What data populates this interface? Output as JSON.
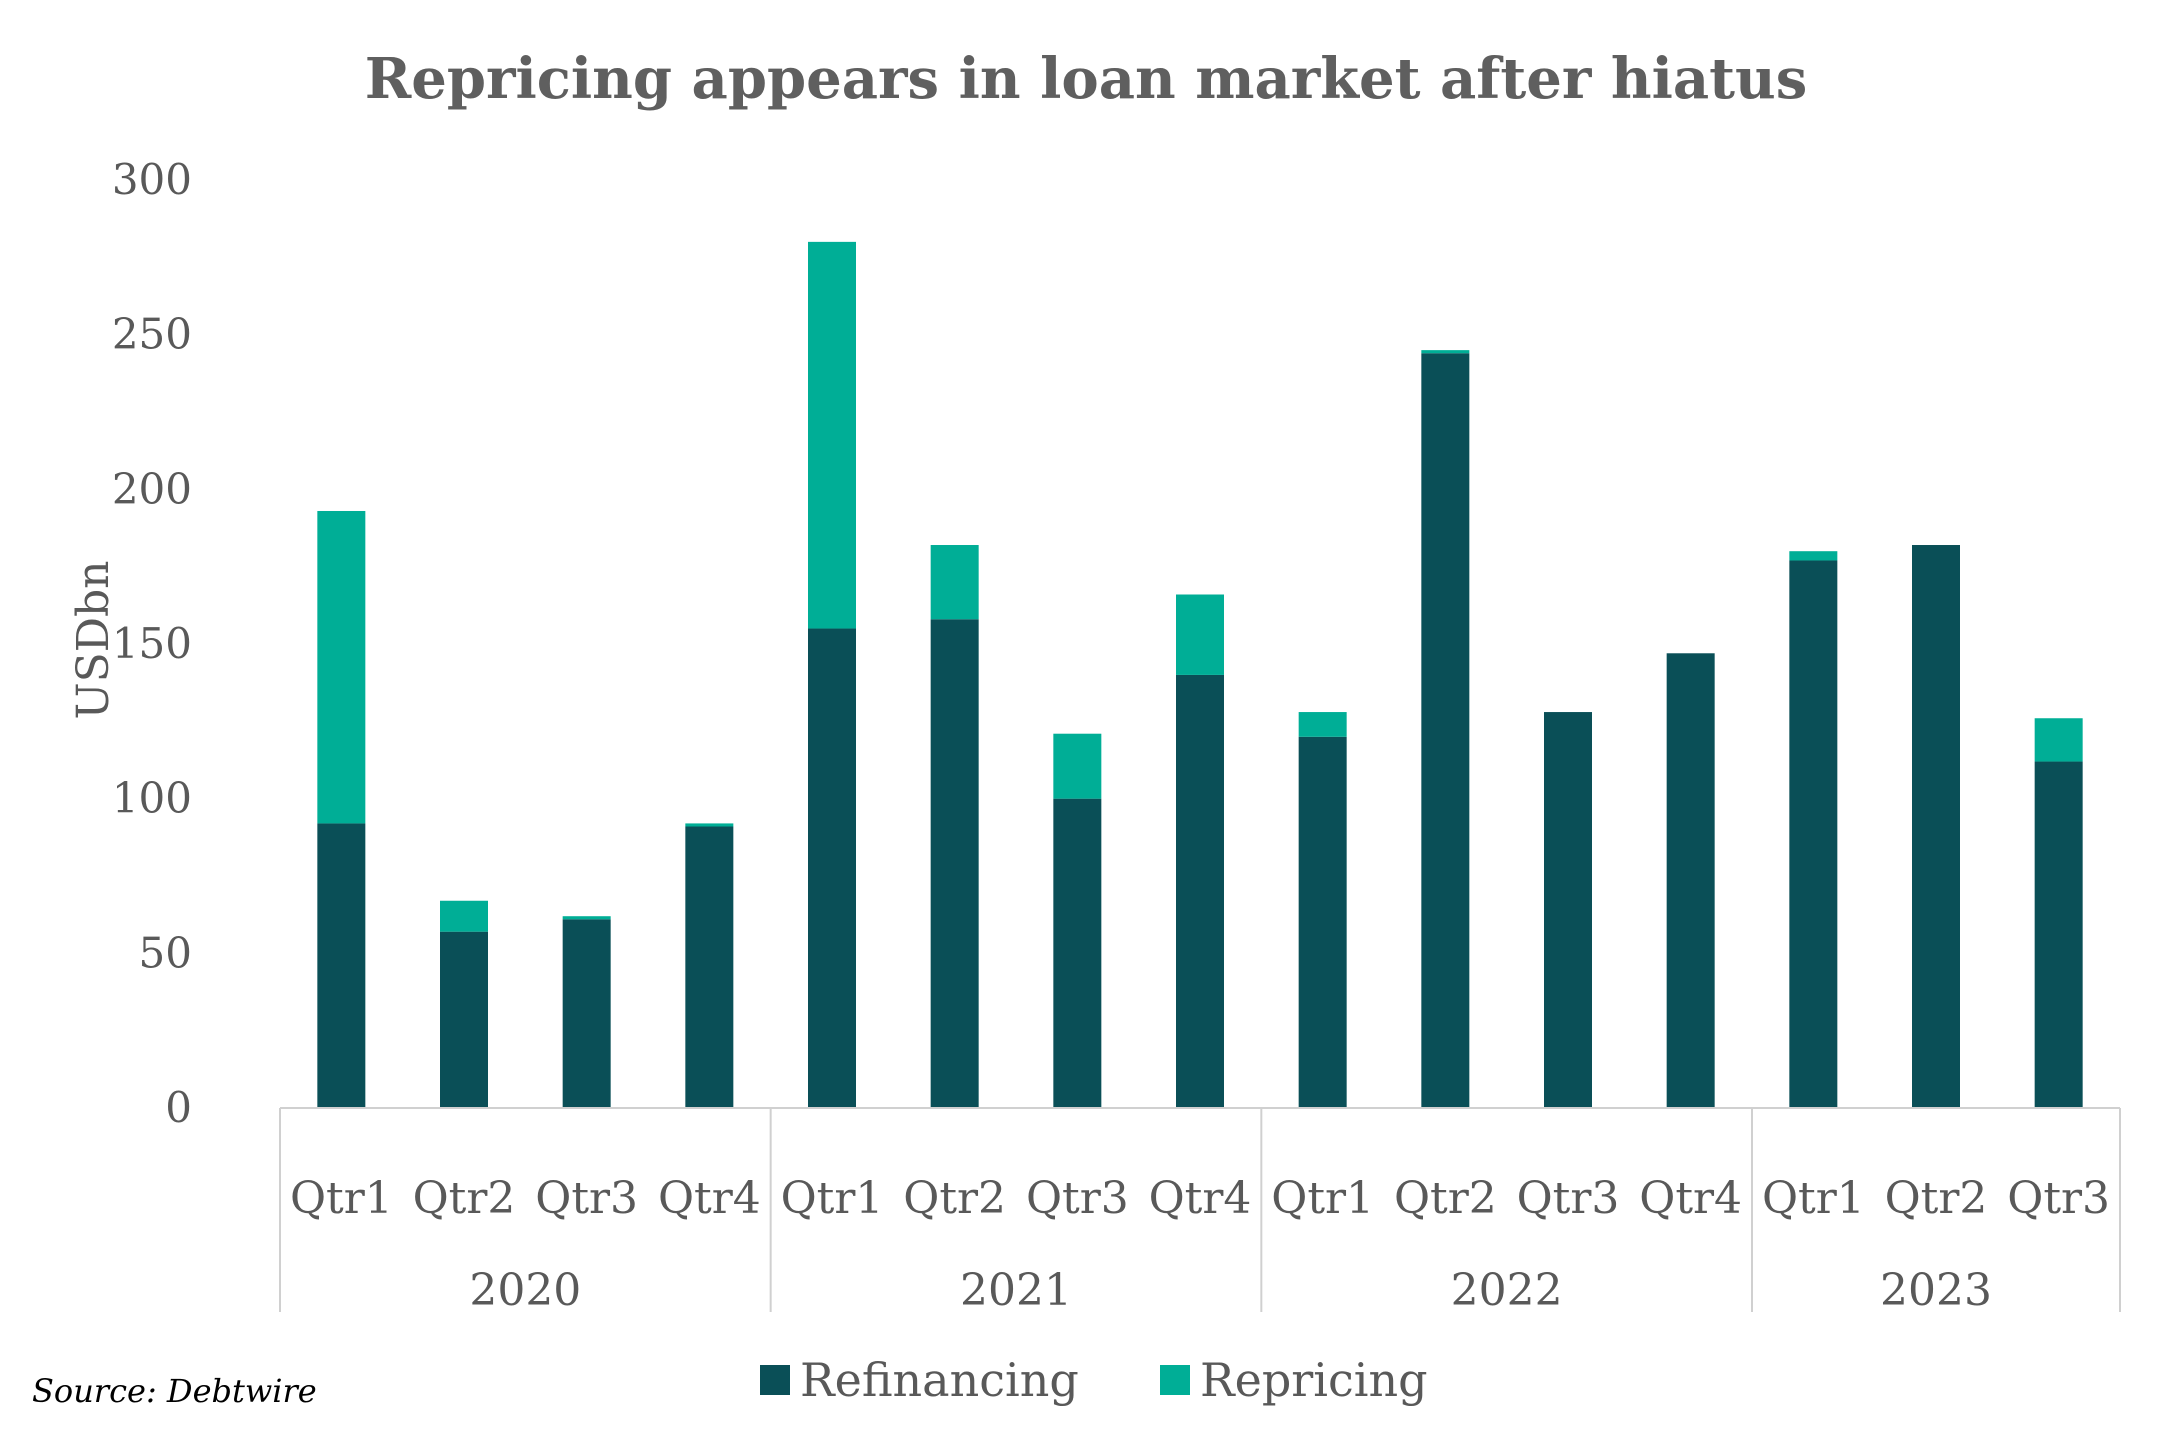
{
  "chart_data": {
    "type": "bar",
    "stacked": true,
    "title": "Repricing appears in loan market after hiatus",
    "ylabel": "USDbn",
    "ylim": [
      0,
      300
    ],
    "yticks": [
      0,
      50,
      100,
      150,
      200,
      250,
      300
    ],
    "grid": false,
    "legend_position": "bottom",
    "groups": [
      {
        "label": "2020",
        "categories": [
          "Qtr1",
          "Qtr2",
          "Qtr3",
          "Qtr4"
        ]
      },
      {
        "label": "2021",
        "categories": [
          "Qtr1",
          "Qtr2",
          "Qtr3",
          "Qtr4"
        ]
      },
      {
        "label": "2022",
        "categories": [
          "Qtr1",
          "Qtr2",
          "Qtr3",
          "Qtr4"
        ]
      },
      {
        "label": "2023",
        "categories": [
          "Qtr1",
          "Qtr2",
          "Qtr3"
        ]
      }
    ],
    "series": [
      {
        "name": "Refinancing",
        "color": "#0a4f57",
        "values": [
          92,
          57,
          61,
          91,
          155,
          158,
          100,
          140,
          120,
          244,
          128,
          147,
          177,
          182,
          112
        ]
      },
      {
        "name": "Repricing",
        "color": "#00ae96",
        "values": [
          101,
          10,
          1,
          1,
          125,
          24,
          21,
          26,
          8,
          1,
          0,
          0,
          3,
          0,
          14
        ]
      }
    ]
  },
  "source": "Source: Debtwire"
}
